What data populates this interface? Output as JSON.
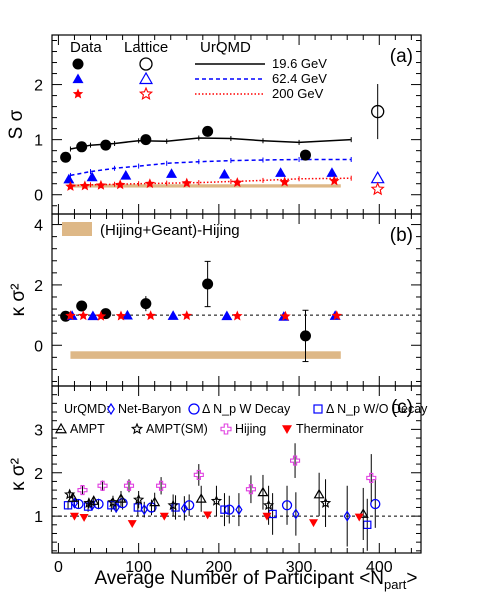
{
  "figure": {
    "xlabel_main": "Average Number of Participant <N",
    "xlabel_sub": "part",
    "xlabel_end": ">"
  },
  "colors": {
    "black": "#000000",
    "blue": "#0000ff",
    "red": "#ff0000",
    "magenta": "#e040e0",
    "band": "#deb887",
    "blue_line": "#0000ff",
    "red_line": "#ff0000"
  },
  "chart_data": [
    {
      "type": "scatter",
      "panel": "(a)",
      "ylabel": "S σ",
      "xlim": [
        -8,
        452
      ],
      "ylim": [
        -0.35,
        2.9
      ],
      "xticks": [
        0,
        100,
        200,
        300,
        400
      ],
      "yticks": [
        0,
        1,
        2
      ],
      "legend": {
        "head_data": "Data",
        "head_lattice": "Lattice",
        "head_urqmd": "UrQMD",
        "energies": [
          "19.6 GeV",
          "62.4 GeV",
          "200 GeV"
        ]
      },
      "series": [
        {
          "name": "19.6 GeV",
          "marker": "circle",
          "color": "#000000",
          "x": [
            9,
            29,
            59,
            109,
            186,
            308
          ],
          "y": [
            0.68,
            0.87,
            0.9,
            1.0,
            1.15,
            0.72
          ],
          "err": [
            0.06,
            0.06,
            0.06,
            0.06,
            0.08,
            0.08
          ]
        },
        {
          "name": "62.4 GeV",
          "marker": "triangle",
          "color": "#0000ff",
          "x": [
            13,
            42,
            84,
            141,
            207,
            277,
            341
          ],
          "y": [
            0.28,
            0.32,
            0.35,
            0.38,
            0.37,
            0.4,
            0.4
          ],
          "err": [
            0.03,
            0.03,
            0.03,
            0.03,
            0.03,
            0.03,
            0.03
          ]
        },
        {
          "name": "200 GeV",
          "marker": "star",
          "color": "#ff0000",
          "x": [
            15,
            33,
            53,
            77,
            114,
            160,
            223,
            282,
            344
          ],
          "y": [
            0.15,
            0.16,
            0.17,
            0.18,
            0.2,
            0.21,
            0.22,
            0.23,
            0.25
          ],
          "err": [
            0.02,
            0.02,
            0.02,
            0.02,
            0.02,
            0.02,
            0.02,
            0.02,
            0.02
          ]
        }
      ],
      "lattice": [
        {
          "name": "19.6 GeV",
          "marker": "circle-open",
          "color": "#000000",
          "x": 398,
          "y": 1.51,
          "err": 0.5
        },
        {
          "name": "62.4 GeV",
          "marker": "triangle-open",
          "color": "#0000ff",
          "x": 398,
          "y": 0.3,
          "err": 0
        },
        {
          "name": "200 GeV",
          "marker": "star-open",
          "color": "#ff0000",
          "x": 398,
          "y": 0.1,
          "err": 0
        }
      ],
      "urqmd": [
        {
          "name": "19.6 GeV",
          "style": "solid",
          "color": "#000000",
          "x": [
            15,
            40,
            70,
            100,
            135,
            175,
            215,
            255,
            300,
            365
          ],
          "y": [
            0.83,
            0.9,
            0.93,
            0.98,
            0.97,
            1.03,
            1.02,
            0.98,
            0.95,
            1.0
          ]
        },
        {
          "name": "62.4 GeV",
          "style": "dashed",
          "color": "#0000ff",
          "x": [
            15,
            40,
            70,
            100,
            135,
            175,
            215,
            255,
            300,
            365
          ],
          "y": [
            0.35,
            0.42,
            0.48,
            0.52,
            0.57,
            0.6,
            0.62,
            0.63,
            0.64,
            0.64
          ]
        },
        {
          "name": "200 GeV",
          "style": "dotted",
          "color": "#ff0000",
          "x": [
            15,
            40,
            70,
            100,
            135,
            175,
            215,
            255,
            300,
            365
          ],
          "y": [
            0.16,
            0.18,
            0.19,
            0.2,
            0.21,
            0.22,
            0.24,
            0.26,
            0.29,
            0.3
          ]
        }
      ],
      "band": {
        "x0": 15,
        "x1": 352,
        "y0": 0.13,
        "y1": 0.19
      }
    },
    {
      "type": "scatter",
      "panel": "(b)",
      "ylabel": "κ σ²",
      "xlim": [
        -8,
        452
      ],
      "ylim": [
        -1.35,
        4.35
      ],
      "xticks": [
        0,
        100,
        200,
        300,
        400
      ],
      "yticks": [
        0,
        2,
        4
      ],
      "reference_y": 1,
      "legend": {
        "band_label": "(Hijing+Geant)-Hijing"
      },
      "series": [
        {
          "name": "19.6 GeV",
          "marker": "circle",
          "color": "#000000",
          "x": [
            9,
            29,
            59,
            109,
            186,
            308
          ],
          "y": [
            0.96,
            1.3,
            1.05,
            1.38,
            2.03,
            0.31
          ],
          "err": [
            0.08,
            0.15,
            0.1,
            0.25,
            0.75,
            0.85
          ]
        },
        {
          "name": "62.4 GeV",
          "marker": "triangle",
          "color": "#0000ff",
          "x": [
            17,
            43,
            86,
            143,
            210,
            281,
            345
          ],
          "y": [
            0.98,
            0.97,
            0.99,
            0.98,
            0.97,
            0.95,
            0.98
          ],
          "err": [
            0.02,
            0.02,
            0.02,
            0.03,
            0.03,
            0.04,
            0.05
          ]
        },
        {
          "name": "200 GeV",
          "marker": "star",
          "color": "#ff0000",
          "x": [
            15,
            31,
            53,
            78,
            115,
            160,
            223,
            283,
            347
          ],
          "y": [
            0.98,
            0.98,
            0.96,
            0.97,
            0.98,
            0.98,
            0.97,
            0.96,
            0.98
          ],
          "err": [
            0.02,
            0.02,
            0.02,
            0.02,
            0.03,
            0.03,
            0.04,
            0.05,
            0.06
          ]
        }
      ],
      "band": {
        "x0": 15,
        "x1": 352,
        "y0": -0.45,
        "y1": -0.2
      }
    },
    {
      "type": "scatter",
      "panel": "(c)",
      "ylabel": "κ σ²",
      "xlim": [
        -8,
        452
      ],
      "ylim": [
        0.15,
        4.0
      ],
      "xticks": [
        0,
        100,
        200,
        300,
        400
      ],
      "yticks": [
        1,
        2,
        3
      ],
      "reference_y": 1,
      "legend": {
        "prefix": "UrQMD:",
        "entries": [
          "Net-Baryon",
          "Δ N_p W Decay",
          "Δ N_p W/O Decay",
          "AMPT",
          "AMPT(SM)",
          "Hijing",
          "Therminator"
        ]
      },
      "series": [
        {
          "name": "Net-Baryon",
          "marker": "diamond-open",
          "color": "#0000ff",
          "x": [
            20,
            42,
            72,
            107,
            157,
            225,
            296,
            360
          ],
          "y": [
            1.3,
            1.25,
            1.2,
            1.15,
            1.18,
            1.15,
            1.05,
            1.0
          ],
          "err": [
            0.1,
            0.12,
            0.12,
            0.18,
            0.28,
            0.38,
            0.5,
            0.7
          ]
        },
        {
          "name": "Δ N_p W Decay",
          "marker": "circle-open",
          "color": "#0000ff",
          "x": [
            25,
            50,
            80,
            116,
            163,
            213,
            285,
            395
          ],
          "y": [
            1.28,
            1.28,
            1.3,
            1.2,
            1.25,
            1.15,
            1.25,
            1.28
          ],
          "err": [
            0.1,
            0.12,
            0.15,
            0.18,
            0.25,
            0.32,
            0.45,
            0.55
          ]
        },
        {
          "name": "Δ N_p W/O Decay",
          "marker": "square-open",
          "color": "#0000ff",
          "x": [
            12,
            37,
            66,
            99,
            146,
            207,
            267,
            385
          ],
          "y": [
            1.25,
            1.22,
            1.25,
            1.2,
            1.2,
            1.15,
            1.05,
            0.8
          ],
          "err": [
            0.1,
            0.12,
            0.15,
            0.2,
            0.28,
            0.38,
            0.48,
            0.6
          ]
        },
        {
          "name": "AMPT",
          "marker": "triangle-open",
          "color": "#000000",
          "x": [
            18,
            44,
            78,
            120,
            178,
            255,
            325,
            380
          ],
          "y": [
            1.42,
            1.35,
            1.4,
            1.32,
            1.4,
            1.55,
            1.5,
            1.05
          ],
          "err": [
            0.1,
            0.12,
            0.18,
            0.22,
            0.3,
            0.4,
            0.5,
            0.6
          ]
        },
        {
          "name": "AMPT(SM)",
          "marker": "star-open",
          "color": "#000000",
          "x": [
            14,
            38,
            68,
            100,
            143,
            197,
            262,
            333
          ],
          "y": [
            1.5,
            1.3,
            1.32,
            1.38,
            1.25,
            1.35,
            1.25,
            1.3
          ],
          "err": [
            0.1,
            0.12,
            0.15,
            0.2,
            0.25,
            0.35,
            0.45,
            0.55
          ]
        },
        {
          "name": "Hijing",
          "marker": "cross-open",
          "color": "#e040e0",
          "x": [
            30,
            55,
            88,
            128,
            175,
            240,
            295,
            390
          ],
          "y": [
            1.6,
            1.7,
            1.7,
            1.7,
            1.95,
            1.62,
            2.28,
            1.88
          ],
          "err": [
            0.1,
            0.12,
            0.15,
            0.2,
            0.25,
            0.32,
            0.4,
            0.55
          ]
        },
        {
          "name": "Therminator",
          "marker": "triangle-down",
          "color": "#ff0000",
          "x": [
            20,
            32,
            92,
            132,
            186,
            260,
            318,
            375
          ],
          "y": [
            1.0,
            0.97,
            0.83,
            1.0,
            1.03,
            1.0,
            0.85,
            0.98
          ],
          "err": [
            0.0,
            0.0,
            0.0,
            0.0,
            0.0,
            0.0,
            0.0,
            0.0
          ]
        }
      ]
    }
  ]
}
